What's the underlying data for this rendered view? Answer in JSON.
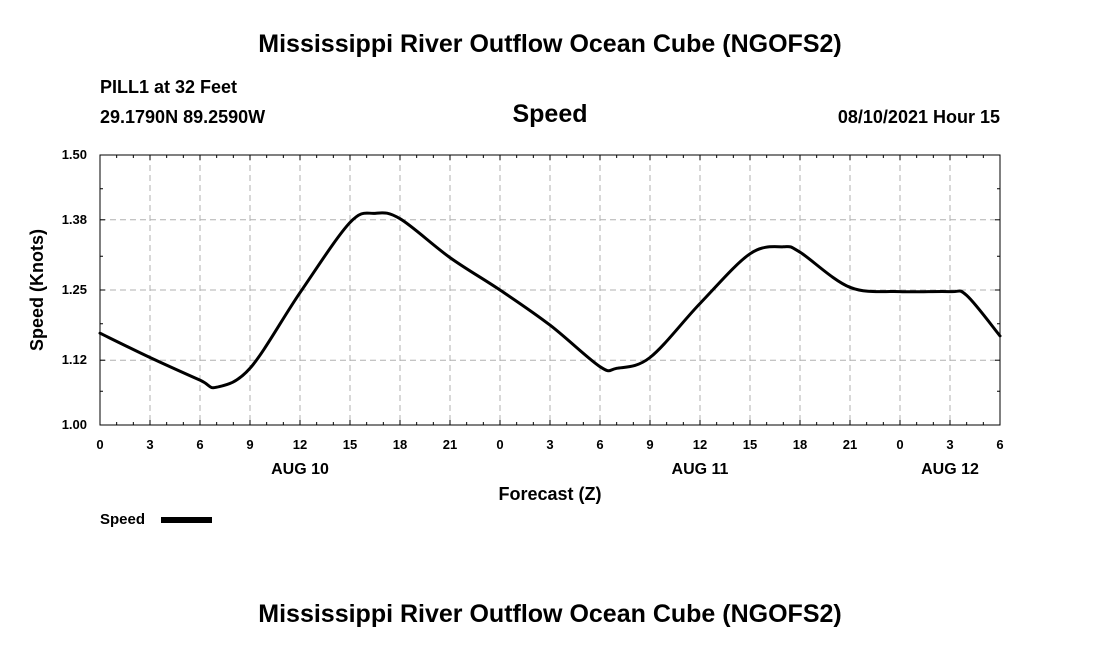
{
  "header": {
    "title": "Mississippi River Outflow Ocean Cube (NGOFS2)",
    "station": "PILL1 at 32 Feet",
    "coords": "29.1790N  89.2590W",
    "variable": "Speed",
    "datetime": "08/10/2021 Hour 15"
  },
  "footer": {
    "title": "Mississippi River Outflow Ocean Cube (NGOFS2)"
  },
  "chart_data": {
    "type": "line",
    "title": "Speed",
    "xlabel": "Forecast (Z)",
    "ylabel": "Speed (Knots)",
    "xlim": [
      0,
      54
    ],
    "ylim": [
      1.0,
      1.5
    ],
    "grid": true,
    "yticks": [
      1.0,
      1.12,
      1.25,
      1.38,
      1.5
    ],
    "ytick_labels": [
      "1.00",
      "1.12",
      "1.25",
      "1.38",
      "1.50"
    ],
    "xticks": [
      0,
      3,
      6,
      9,
      12,
      15,
      18,
      21,
      24,
      27,
      30,
      33,
      36,
      39,
      42,
      45,
      48,
      51,
      54
    ],
    "xtick_labels": [
      "0",
      "3",
      "6",
      "9",
      "12",
      "15",
      "18",
      "21",
      "0",
      "3",
      "6",
      "9",
      "12",
      "15",
      "18",
      "21",
      "0",
      "3",
      "6"
    ],
    "date_labels": [
      {
        "hour": 12,
        "label": "AUG 10"
      },
      {
        "hour": 36,
        "label": "AUG 11"
      },
      {
        "hour": 51,
        "label": "AUG 12"
      }
    ],
    "legend": {
      "label": "Speed",
      "position": "bottom-left"
    },
    "series": [
      {
        "name": "Speed",
        "color": "#000000",
        "x": [
          0,
          3,
          6,
          7,
          9,
          12,
          15,
          16.5,
          18,
          21,
          24,
          27,
          30,
          31,
          33,
          36,
          39,
          41,
          42,
          45,
          48,
          51,
          52,
          54
        ],
        "y": [
          1.17,
          1.125,
          1.083,
          1.07,
          1.105,
          1.245,
          1.375,
          1.392,
          1.382,
          1.31,
          1.25,
          1.185,
          1.108,
          1.105,
          1.125,
          1.225,
          1.317,
          1.33,
          1.32,
          1.255,
          1.247,
          1.247,
          1.24,
          1.165
        ]
      }
    ]
  }
}
